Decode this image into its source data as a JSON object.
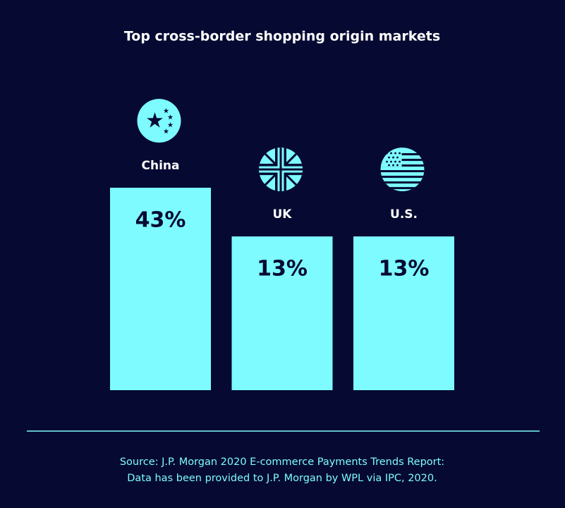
{
  "chart_data": {
    "type": "bar",
    "title": "Top cross-border shopping origin markets",
    "categories": [
      "China",
      "UK",
      "U.S."
    ],
    "values": [
      43,
      13,
      13
    ],
    "value_labels": [
      "43%",
      "13%",
      "13%"
    ],
    "color": "#7dfbff",
    "source": [
      "Source: J.P. Morgan 2020 E-commerce Payments Trends Report:",
      "Data has been provided to J.P. Morgan by WPL via IPC, 2020."
    ]
  }
}
